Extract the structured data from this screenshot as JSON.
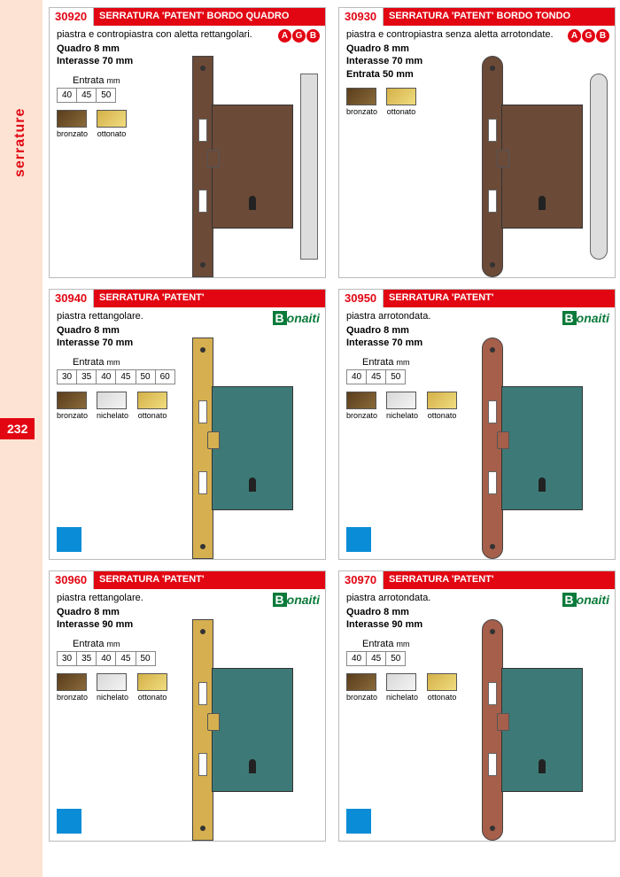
{
  "sidebar": {
    "label": "serrature",
    "page": "232"
  },
  "colors": {
    "bronzato": "linear-gradient(135deg,#5a3d1c,#8a6a3a)",
    "ottonato": "linear-gradient(135deg,#d4b048,#f0dd80)",
    "nichelato": "linear-gradient(135deg,#d8d8d8,#f4f4f4)"
  },
  "products": [
    {
      "code": "30920",
      "title": "SERRATURA 'PATENT' BORDO QUADRO",
      "desc": "piastra e contropiastra con aletta rettangolari.",
      "specs": [
        "Quadro 8 mm",
        "Interasse 70 mm"
      ],
      "entrata": [
        "40",
        "45",
        "50"
      ],
      "finishes": [
        "bronzato",
        "ottonato"
      ],
      "brand": "agb",
      "image": {
        "plate_rounded": false,
        "body_color": "#6b4a38",
        "plate_color": "#6b4a38",
        "strike": true
      }
    },
    {
      "code": "30930",
      "title": "SERRATURA 'PATENT' BORDO TONDO",
      "desc": "piastra e contropiastra senza aletta arrotondate.",
      "specs": [
        "Quadro 8 mm",
        "Interasse 70 mm"
      ],
      "entrata_single": "Entrata 50 mm",
      "finishes": [
        "bronzato",
        "ottonato"
      ],
      "brand": "agb",
      "image": {
        "plate_rounded": true,
        "body_color": "#6b4a38",
        "plate_color": "#6b4a38",
        "strike": true
      }
    },
    {
      "code": "30940",
      "title": "SERRATURA 'PATENT'",
      "desc": "piastra rettangolare.",
      "specs": [
        "Quadro 8 mm",
        "Interasse 70 mm"
      ],
      "entrata": [
        "30",
        "35",
        "40",
        "45",
        "50",
        "60"
      ],
      "finishes": [
        "bronzato",
        "nichelato",
        "ottonato"
      ],
      "brand": "bonaiti",
      "corner_badge": true,
      "image": {
        "plate_rounded": false,
        "body_color": "#3d7a77",
        "plate_color": "#d6b050",
        "strike": false
      }
    },
    {
      "code": "30950",
      "title": "SERRATURA 'PATENT'",
      "desc": "piastra arrotondata.",
      "specs": [
        "Quadro 8 mm",
        "Interasse 70 mm"
      ],
      "entrata": [
        "40",
        "45",
        "50"
      ],
      "finishes": [
        "bronzato",
        "nichelato",
        "ottonato"
      ],
      "brand": "bonaiti",
      "corner_badge": true,
      "image": {
        "plate_rounded": true,
        "body_color": "#3d7a77",
        "plate_color": "#a65f4a",
        "strike": false
      }
    },
    {
      "code": "30960",
      "title": "SERRATURA 'PATENT'",
      "desc": "piastra rettangolare.",
      "specs": [
        "Quadro 8 mm",
        "Interasse 90 mm"
      ],
      "entrata": [
        "30",
        "35",
        "40",
        "45",
        "50"
      ],
      "finishes": [
        "bronzato",
        "nichelato",
        "ottonato"
      ],
      "brand": "bonaiti",
      "corner_badge": true,
      "image": {
        "plate_rounded": false,
        "body_color": "#3d7a77",
        "plate_color": "#d6b050",
        "strike": false
      }
    },
    {
      "code": "30970",
      "title": "SERRATURA 'PATENT'",
      "desc": "piastra arrotondata.",
      "specs": [
        "Quadro 8 mm",
        "Interasse 90 mm"
      ],
      "entrata": [
        "40",
        "45",
        "50"
      ],
      "finishes": [
        "bronzato",
        "nichelato",
        "ottonato"
      ],
      "brand": "bonaiti",
      "corner_badge": true,
      "image": {
        "plate_rounded": true,
        "body_color": "#3d7a77",
        "plate_color": "#a65f4a",
        "strike": false
      }
    }
  ],
  "labels": {
    "entrata": "Entrata",
    "mm": "mm"
  }
}
